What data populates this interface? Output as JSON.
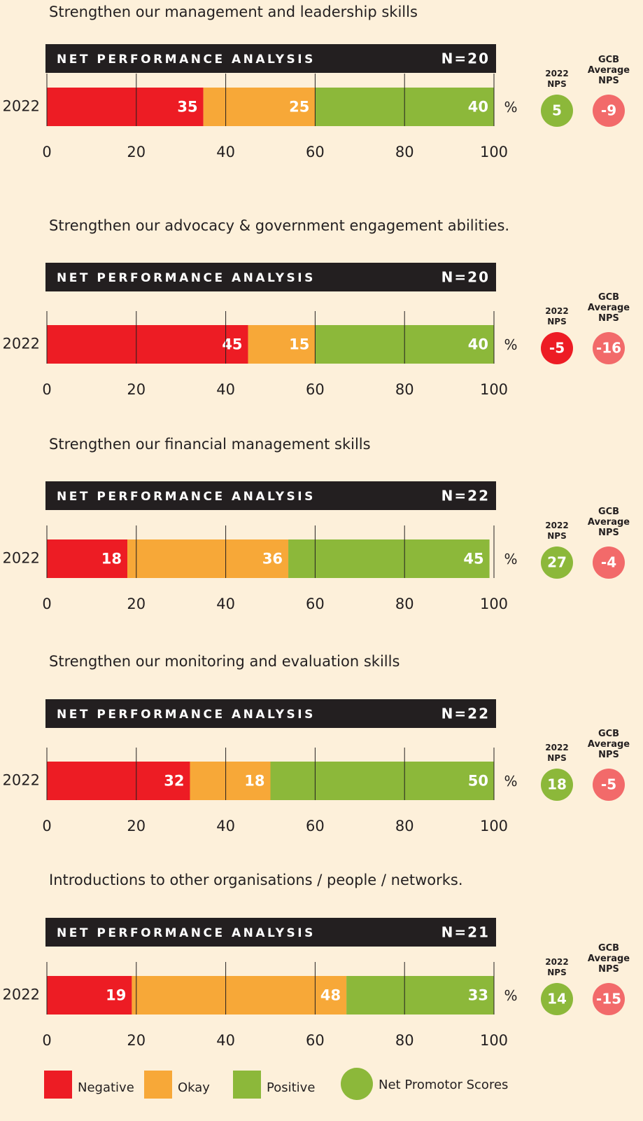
{
  "chart_data": [
    {
      "type": "stacked-bar",
      "title": "Strengthen our management and leadership skills",
      "header": "NET PERFORMANCE ANALYSIS",
      "n_label": "N=20",
      "categories": [
        "2022"
      ],
      "unit": "%",
      "series": [
        {
          "name": "Negative",
          "color": "#ed1c24",
          "values": [
            35
          ]
        },
        {
          "name": "Okay",
          "color": "#f7a838",
          "values": [
            25
          ]
        },
        {
          "name": "Positive",
          "color": "#8cb83a",
          "values": [
            40
          ]
        }
      ],
      "xlim": [
        0,
        100
      ],
      "xticks": [
        0,
        20,
        40,
        60,
        80,
        100
      ],
      "nps": {
        "label": "2022 NPS",
        "value": 5,
        "color": "#8cb83a"
      },
      "gcb": {
        "label": "GCB Average NPS",
        "value": -9,
        "color": "#f26a6a"
      }
    },
    {
      "type": "stacked-bar",
      "title": "Strengthen our advocacy & government engagement abilities.",
      "header": "NET PERFORMANCE ANALYSIS",
      "n_label": "N=20",
      "categories": [
        "2022"
      ],
      "unit": "%",
      "series": [
        {
          "name": "Negative",
          "color": "#ed1c24",
          "values": [
            45
          ]
        },
        {
          "name": "Okay",
          "color": "#f7a838",
          "values": [
            15
          ]
        },
        {
          "name": "Positive",
          "color": "#8cb83a",
          "values": [
            40
          ]
        }
      ],
      "xlim": [
        0,
        100
      ],
      "xticks": [
        0,
        20,
        40,
        60,
        80,
        100
      ],
      "nps": {
        "label": "2022 NPS",
        "value": -5,
        "color": "#ed1c24"
      },
      "gcb": {
        "label": "GCB Average NPS",
        "value": -16,
        "color": "#f26a6a"
      }
    },
    {
      "type": "stacked-bar",
      "title": "Strengthen our financial management skills",
      "header": "NET PERFORMANCE ANALYSIS",
      "n_label": "N=22",
      "categories": [
        "2022"
      ],
      "unit": "%",
      "series": [
        {
          "name": "Negative",
          "color": "#ed1c24",
          "values": [
            18
          ]
        },
        {
          "name": "Okay",
          "color": "#f7a838",
          "values": [
            36
          ]
        },
        {
          "name": "Positive",
          "color": "#8cb83a",
          "values": [
            45
          ]
        }
      ],
      "xlim": [
        0,
        100
      ],
      "xticks": [
        0,
        20,
        40,
        60,
        80,
        100
      ],
      "nps": {
        "label": "2022 NPS",
        "value": 27,
        "color": "#8cb83a"
      },
      "gcb": {
        "label": "GCB Average NPS",
        "value": -4,
        "color": "#f26a6a"
      }
    },
    {
      "type": "stacked-bar",
      "title": "Strengthen our monitoring and evaluation skills",
      "header": "NET PERFORMANCE ANALYSIS",
      "n_label": "N=22",
      "categories": [
        "2022"
      ],
      "unit": "%",
      "series": [
        {
          "name": "Negative",
          "color": "#ed1c24",
          "values": [
            32
          ]
        },
        {
          "name": "Okay",
          "color": "#f7a838",
          "values": [
            18
          ]
        },
        {
          "name": "Positive",
          "color": "#8cb83a",
          "values": [
            50
          ]
        }
      ],
      "xlim": [
        0,
        100
      ],
      "xticks": [
        0,
        20,
        40,
        60,
        80,
        100
      ],
      "nps": {
        "label": "2022 NPS",
        "value": 18,
        "color": "#8cb83a"
      },
      "gcb": {
        "label": "GCB Average NPS",
        "value": -5,
        "color": "#f26a6a"
      }
    },
    {
      "type": "stacked-bar",
      "title": "Introductions to other organisations / people / networks.",
      "header": "NET PERFORMANCE ANALYSIS",
      "n_label": "N=21",
      "categories": [
        "2022"
      ],
      "unit": "%",
      "series": [
        {
          "name": "Negative",
          "color": "#ed1c24",
          "values": [
            19
          ]
        },
        {
          "name": "Okay",
          "color": "#f7a838",
          "values": [
            48
          ]
        },
        {
          "name": "Positive",
          "color": "#8cb83a",
          "values": [
            33
          ]
        }
      ],
      "xlim": [
        0,
        100
      ],
      "xticks": [
        0,
        20,
        40,
        60,
        80,
        100
      ],
      "nps": {
        "label": "2022 NPS",
        "value": 14,
        "color": "#8cb83a"
      },
      "gcb": {
        "label": "GCB Average NPS",
        "value": -15,
        "color": "#f26a6a"
      }
    }
  ],
  "legend": {
    "nps_label": "Net Promotor Scores",
    "nps_color": "#8cb83a"
  }
}
